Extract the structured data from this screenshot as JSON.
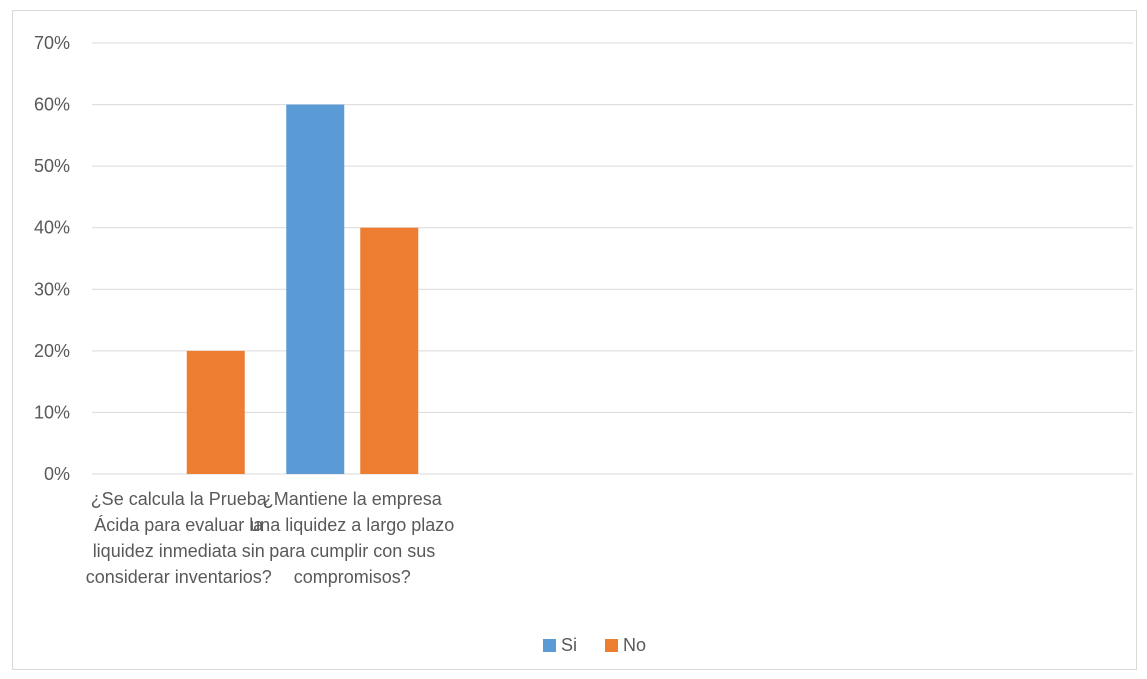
{
  "chart_data": {
    "type": "bar",
    "title": "",
    "xlabel": "",
    "ylabel": "",
    "categories": [
      "¿Se calcula la Prueba Ácida para evaluar la liquidez inmediata sin considerar inventarios?",
      "¿Mantiene la empresa una liquidez a largo plazo para cumplir con sus compromisos?"
    ],
    "category_lines": [
      [
        "¿Se calcula la Prueba",
        "Ácida para evaluar la",
        "liquidez inmediata sin",
        "considerar inventarios?"
      ],
      [
        "¿Mantiene la empresa",
        "una liquidez a largo plazo",
        "para cumplir con sus",
        "compromisos?"
      ]
    ],
    "series": [
      {
        "name": "Si",
        "color": "#5b9bd5",
        "values": [
          0,
          0.6
        ]
      },
      {
        "name": "No",
        "color": "#ed7d31",
        "values": [
          0.2,
          0.4
        ]
      }
    ],
    "ylim": [
      0,
      0.7
    ],
    "yticks": [
      0,
      0.1,
      0.2,
      0.3,
      0.4,
      0.5,
      0.6,
      0.7
    ],
    "ytick_labels": [
      "0%",
      "10%",
      "20%",
      "30%",
      "40%",
      "50%",
      "60%",
      "70%"
    ],
    "grid": true,
    "grid_color": "#d9d9d9",
    "legend_position": "bottom",
    "category_slots": 6
  }
}
